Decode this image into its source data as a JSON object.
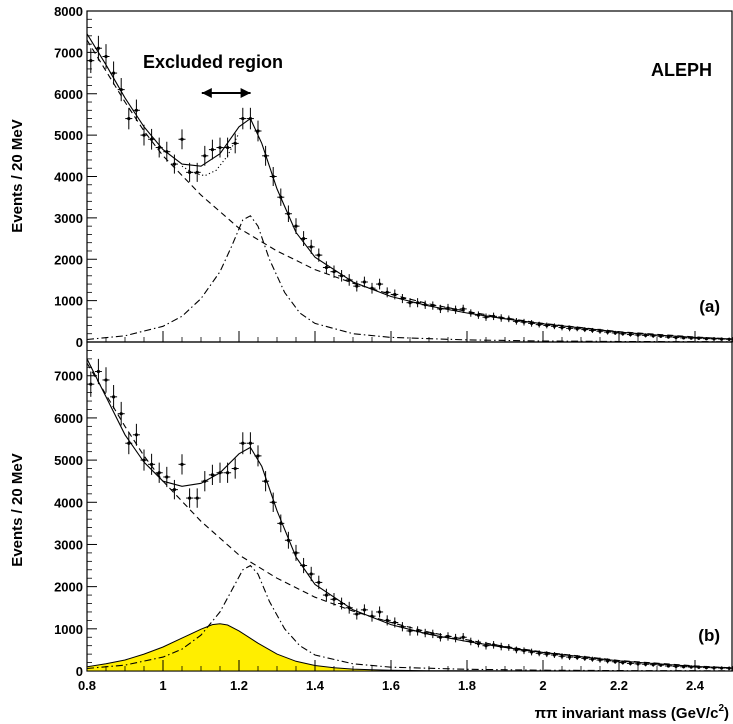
{
  "figure": {
    "experiment_label": "ALEPH",
    "excluded_region_label": "Excluded region",
    "x_axis_label": "ππ invariant mass (GeV/c",
    "x_axis_label_superscript": "2",
    "x_axis_label_close": ")"
  },
  "chart_data": [
    {
      "type": "line",
      "panel_label": "(a)",
      "ylabel": "Events / 20 MeV",
      "xlim": [
        0.8,
        2.5
      ],
      "ylim": [
        0,
        8000
      ],
      "x_ticks": [
        0.8,
        1,
        1.2,
        1.4,
        1.6,
        1.8,
        2,
        2.2,
        2.4
      ],
      "y_ticks": [
        0,
        1000,
        2000,
        3000,
        4000,
        5000,
        6000,
        7000,
        8000
      ],
      "excluded_region": [
        1.06,
        1.22
      ],
      "data_points": {
        "x": [
          0.81,
          0.83,
          0.85,
          0.87,
          0.89,
          0.91,
          0.93,
          0.95,
          0.97,
          0.99,
          1.01,
          1.03,
          1.05,
          1.07,
          1.09,
          1.11,
          1.13,
          1.15,
          1.17,
          1.19,
          1.21,
          1.23,
          1.25,
          1.27,
          1.29,
          1.31,
          1.33,
          1.35,
          1.37,
          1.39,
          1.41,
          1.43,
          1.45,
          1.47,
          1.49,
          1.51,
          1.53,
          1.55,
          1.57,
          1.59,
          1.61,
          1.63,
          1.65,
          1.67,
          1.69,
          1.71,
          1.73,
          1.75,
          1.77,
          1.79,
          1.81,
          1.83,
          1.85,
          1.87,
          1.89,
          1.91,
          1.93,
          1.95,
          1.97,
          1.99,
          2.01,
          2.03,
          2.05,
          2.07,
          2.09,
          2.11,
          2.13,
          2.15,
          2.17,
          2.19,
          2.21,
          2.23,
          2.25,
          2.27,
          2.29,
          2.31,
          2.33,
          2.35,
          2.37,
          2.39,
          2.41,
          2.43,
          2.45,
          2.47,
          2.49
        ],
        "y": [
          6800,
          7100,
          6900,
          6500,
          6100,
          5400,
          5600,
          5000,
          4900,
          4700,
          4600,
          4300,
          4900,
          4100,
          4100,
          4500,
          4650,
          4700,
          4700,
          4800,
          5400,
          5400,
          5100,
          4500,
          4000,
          3500,
          3100,
          2800,
          2500,
          2300,
          2100,
          1800,
          1700,
          1600,
          1500,
          1350,
          1450,
          1300,
          1400,
          1200,
          1150,
          1050,
          950,
          950,
          900,
          880,
          800,
          820,
          780,
          800,
          700,
          650,
          600,
          620,
          580,
          560,
          500,
          480,
          450,
          420,
          400,
          380,
          350,
          330,
          320,
          300,
          280,
          260,
          240,
          220,
          200,
          180,
          170,
          160,
          150,
          140,
          120,
          110,
          100,
          95,
          90,
          80,
          75,
          70,
          65
        ],
        "yerr": [
          300,
          300,
          300,
          280,
          280,
          260,
          260,
          250,
          250,
          240,
          240,
          230,
          240,
          230,
          230,
          240,
          240,
          240,
          240,
          240,
          260,
          260,
          250,
          240,
          230,
          210,
          200,
          190,
          180,
          170,
          160,
          150,
          150,
          140,
          140,
          130,
          130,
          130,
          130,
          120,
          120,
          110,
          110,
          110,
          100,
          100,
          100,
          100,
          100,
          100,
          90,
          90,
          90,
          90,
          90,
          80,
          80,
          80,
          80,
          70,
          70,
          70,
          70,
          70,
          60,
          60,
          60,
          60,
          60,
          50,
          50,
          50,
          50,
          50,
          50,
          40,
          40,
          40,
          40,
          40,
          40,
          40,
          40,
          40,
          40
        ]
      },
      "series": [
        {
          "style": "solid",
          "x": [
            0.8,
            0.85,
            0.9,
            0.95,
            1.0,
            1.05,
            1.1,
            1.15,
            1.2,
            1.23,
            1.26,
            1.3,
            1.35,
            1.4,
            1.5,
            1.6,
            1.7,
            1.8,
            1.9,
            2.0,
            2.1,
            2.2,
            2.3,
            2.4,
            2.5
          ],
          "y": [
            7450,
            6700,
            5900,
            5200,
            4650,
            4300,
            4250,
            4550,
            5200,
            5400,
            4800,
            3700,
            2650,
            2050,
            1450,
            1100,
            870,
            700,
            560,
            440,
            340,
            240,
            170,
            110,
            70
          ]
        },
        {
          "style": "dotted",
          "x": [
            1.05,
            1.08,
            1.11,
            1.14,
            1.17,
            1.2
          ],
          "y": [
            4250,
            4080,
            4020,
            4150,
            4500,
            5050
          ]
        },
        {
          "style": "dashed",
          "x": [
            0.8,
            0.85,
            0.9,
            0.95,
            1.0,
            1.1,
            1.2,
            1.3,
            1.4,
            1.5,
            1.6,
            1.7,
            1.8,
            1.9,
            2.0,
            2.2,
            2.4,
            2.5
          ],
          "y": [
            7300,
            6550,
            5800,
            5100,
            4500,
            3550,
            2750,
            2200,
            1750,
            1420,
            1150,
            920,
            740,
            580,
            450,
            250,
            120,
            70
          ]
        },
        {
          "style": "dashdot",
          "x": [
            0.8,
            0.9,
            1.0,
            1.05,
            1.1,
            1.15,
            1.18,
            1.21,
            1.23,
            1.25,
            1.28,
            1.32,
            1.36,
            1.4,
            1.5,
            1.6,
            1.8,
            2.0,
            2.2,
            2.5
          ],
          "y": [
            60,
            150,
            380,
            620,
            1050,
            1700,
            2300,
            2950,
            3050,
            2800,
            2000,
            1200,
            700,
            450,
            200,
            110,
            50,
            25,
            12,
            5
          ]
        }
      ]
    },
    {
      "type": "line",
      "panel_label": "(b)",
      "ylabel": "Events / 20 MeV",
      "xlabel": "ππ invariant mass (GeV/c2)",
      "xlim": [
        0.8,
        2.5
      ],
      "ylim": [
        0,
        7800
      ],
      "x_ticks": [
        0.8,
        1,
        1.2,
        1.4,
        1.6,
        1.8,
        2,
        2.2,
        2.4
      ],
      "x_tick_labels": [
        "0.8",
        "1",
        "1.2",
        "1.4",
        "1.6",
        "1.8",
        "2",
        "2.2",
        "2.4"
      ],
      "y_ticks": [
        0,
        1000,
        2000,
        3000,
        4000,
        5000,
        6000,
        7000
      ],
      "data_points": {
        "x": [
          0.81,
          0.83,
          0.85,
          0.87,
          0.89,
          0.91,
          0.93,
          0.95,
          0.97,
          0.99,
          1.01,
          1.03,
          1.05,
          1.07,
          1.09,
          1.11,
          1.13,
          1.15,
          1.17,
          1.19,
          1.21,
          1.23,
          1.25,
          1.27,
          1.29,
          1.31,
          1.33,
          1.35,
          1.37,
          1.39,
          1.41,
          1.43,
          1.45,
          1.47,
          1.49,
          1.51,
          1.53,
          1.55,
          1.57,
          1.59,
          1.61,
          1.63,
          1.65,
          1.67,
          1.69,
          1.71,
          1.73,
          1.75,
          1.77,
          1.79,
          1.81,
          1.83,
          1.85,
          1.87,
          1.89,
          1.91,
          1.93,
          1.95,
          1.97,
          1.99,
          2.01,
          2.03,
          2.05,
          2.07,
          2.09,
          2.11,
          2.13,
          2.15,
          2.17,
          2.19,
          2.21,
          2.23,
          2.25,
          2.27,
          2.29,
          2.31,
          2.33,
          2.35,
          2.37,
          2.39,
          2.41,
          2.43,
          2.45,
          2.47,
          2.49
        ],
        "y": [
          6800,
          7100,
          6900,
          6500,
          6100,
          5400,
          5600,
          5000,
          4900,
          4700,
          4600,
          4300,
          4900,
          4100,
          4100,
          4500,
          4650,
          4700,
          4700,
          4800,
          5400,
          5400,
          5100,
          4500,
          4000,
          3500,
          3100,
          2800,
          2500,
          2300,
          2100,
          1800,
          1700,
          1600,
          1500,
          1350,
          1450,
          1300,
          1400,
          1200,
          1150,
          1050,
          950,
          950,
          900,
          880,
          800,
          820,
          780,
          800,
          700,
          650,
          600,
          620,
          580,
          560,
          500,
          480,
          450,
          420,
          400,
          380,
          350,
          330,
          320,
          300,
          280,
          260,
          240,
          220,
          200,
          180,
          170,
          160,
          150,
          140,
          120,
          110,
          100,
          95,
          90,
          80,
          75,
          70,
          65
        ],
        "yerr": [
          300,
          300,
          300,
          280,
          280,
          260,
          260,
          250,
          250,
          240,
          240,
          230,
          240,
          230,
          230,
          240,
          240,
          240,
          240,
          240,
          260,
          260,
          250,
          240,
          230,
          210,
          200,
          190,
          180,
          170,
          160,
          150,
          150,
          140,
          140,
          130,
          130,
          130,
          130,
          120,
          120,
          110,
          110,
          110,
          100,
          100,
          100,
          100,
          100,
          100,
          90,
          90,
          90,
          90,
          90,
          80,
          80,
          80,
          80,
          70,
          70,
          70,
          70,
          70,
          60,
          60,
          60,
          60,
          60,
          50,
          50,
          50,
          50,
          50,
          50,
          40,
          40,
          40,
          40,
          40,
          40,
          40,
          40,
          40,
          40
        ]
      },
      "series": [
        {
          "style": "solid",
          "x": [
            0.8,
            0.85,
            0.9,
            0.95,
            1.0,
            1.05,
            1.1,
            1.15,
            1.2,
            1.23,
            1.26,
            1.3,
            1.35,
            1.4,
            1.5,
            1.6,
            1.7,
            1.8,
            1.9,
            2.0,
            2.1,
            2.2,
            2.3,
            2.4,
            2.5
          ],
          "y": [
            7400,
            6500,
            5600,
            4950,
            4500,
            4380,
            4450,
            4700,
            5150,
            5300,
            4850,
            3800,
            2700,
            2050,
            1450,
            1100,
            870,
            700,
            560,
            440,
            340,
            240,
            170,
            110,
            70
          ]
        },
        {
          "style": "dashed",
          "x": [
            0.8,
            0.85,
            0.9,
            0.95,
            1.0,
            1.1,
            1.2,
            1.3,
            1.4,
            1.5,
            1.6,
            1.7,
            1.8,
            1.9,
            2.0,
            2.2,
            2.4,
            2.5
          ],
          "y": [
            7300,
            6550,
            5800,
            5100,
            4500,
            3550,
            2750,
            2200,
            1750,
            1420,
            1150,
            920,
            740,
            580,
            450,
            250,
            120,
            70
          ]
        },
        {
          "style": "dashdot",
          "x": [
            0.8,
            0.9,
            1.0,
            1.05,
            1.1,
            1.15,
            1.18,
            1.21,
            1.23,
            1.25,
            1.28,
            1.32,
            1.36,
            1.4,
            1.5,
            1.6,
            1.8,
            2.0,
            2.2,
            2.5
          ],
          "y": [
            60,
            140,
            330,
            520,
            850,
            1400,
            1900,
            2400,
            2500,
            2300,
            1650,
            1000,
            600,
            380,
            170,
            90,
            40,
            20,
            10,
            5
          ]
        },
        {
          "style": "filled",
          "color": "#ffee00",
          "x": [
            0.8,
            0.85,
            0.9,
            0.95,
            1.0,
            1.05,
            1.1,
            1.13,
            1.15,
            1.17,
            1.2,
            1.25,
            1.3,
            1.35,
            1.4,
            1.45,
            1.5,
            1.55,
            1.6,
            1.7,
            1.8,
            2.0,
            2.5
          ],
          "y": [
            100,
            170,
            260,
            400,
            570,
            780,
            990,
            1100,
            1120,
            1090,
            950,
            660,
            400,
            230,
            130,
            75,
            45,
            28,
            18,
            8,
            4,
            2,
            0
          ]
        }
      ]
    }
  ]
}
